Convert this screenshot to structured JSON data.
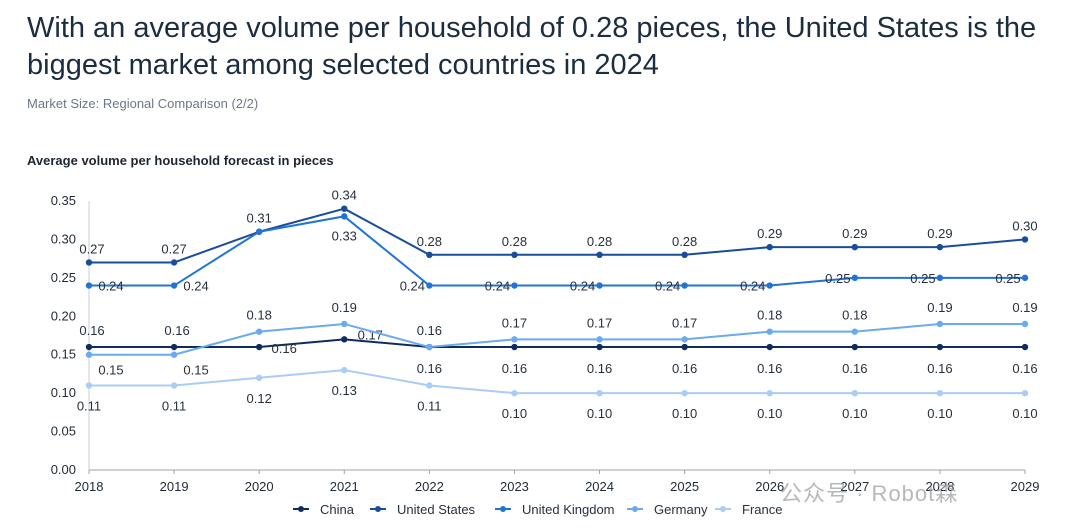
{
  "headline": "With an average volume per household of 0.28 pieces, the United States is the biggest market among selected countries in 2024",
  "subtitle": "Market Size: Regional Comparison (2/2)",
  "watermark": "公众号 · Robot森",
  "chart_data": {
    "type": "line",
    "title": "Average volume per household forecast in pieces",
    "xlabel": "",
    "ylabel": "",
    "x": [
      "2018",
      "2019",
      "2020",
      "2021",
      "2022",
      "2023",
      "2024",
      "2025",
      "2026",
      "2027",
      "2028",
      "2029"
    ],
    "ylim": [
      0,
      0.35
    ],
    "yticks": [
      "0.00",
      "0.05",
      "0.10",
      "0.15",
      "0.20",
      "0.25",
      "0.30",
      "0.35"
    ],
    "legend_position": "bottom",
    "series": [
      {
        "name": "China",
        "color": "#0f2d5c",
        "values": [
          0.16,
          0.16,
          0.16,
          0.17,
          0.16,
          0.16,
          0.16,
          0.16,
          0.16,
          0.16,
          0.16,
          0.16
        ],
        "labels": [
          "0.16",
          "0.16",
          "0.16",
          "0.17",
          "0.16",
          "0.16",
          "0.16",
          "0.16",
          "0.16",
          "0.16",
          "0.16",
          "0.16"
        ]
      },
      {
        "name": "United States",
        "color": "#1a4d99",
        "values": [
          0.27,
          0.27,
          0.31,
          0.34,
          0.28,
          0.28,
          0.28,
          0.28,
          0.29,
          0.29,
          0.29,
          0.3
        ],
        "labels": [
          "0.27",
          "0.27",
          "0.31",
          "0.34",
          "0.28",
          "0.28",
          "0.28",
          "0.28",
          "0.29",
          "0.29",
          "0.29",
          "0.30"
        ]
      },
      {
        "name": "United Kingdom",
        "color": "#2273d8",
        "values": [
          0.24,
          0.24,
          0.31,
          0.33,
          0.24,
          0.24,
          0.24,
          0.24,
          0.24,
          0.25,
          0.25,
          0.25
        ],
        "labels": [
          "0.24",
          "0.24",
          "",
          "0.33",
          "0.24",
          "0.24",
          "0.24",
          "0.24",
          "0.24",
          "0.25",
          "0.25",
          "0.25"
        ]
      },
      {
        "name": "Germany",
        "color": "#6aaaf0",
        "values": [
          0.15,
          0.15,
          0.18,
          0.19,
          0.16,
          0.17,
          0.17,
          0.17,
          0.18,
          0.18,
          0.19,
          0.19
        ],
        "labels": [
          "0.15",
          "0.15",
          "0.18",
          "0.19",
          "0.16",
          "0.17",
          "0.17",
          "0.17",
          "0.18",
          "0.18",
          "0.19",
          "0.19"
        ]
      },
      {
        "name": "France",
        "color": "#a9cdf5",
        "values": [
          0.11,
          0.11,
          0.12,
          0.13,
          0.11,
          0.1,
          0.1,
          0.1,
          0.1,
          0.1,
          0.1,
          0.1
        ],
        "labels": [
          "0.11",
          "0.11",
          "0.12",
          "0.13",
          "0.11",
          "0.10",
          "0.10",
          "0.10",
          "0.10",
          "0.10",
          "0.10",
          "0.10"
        ]
      }
    ]
  }
}
